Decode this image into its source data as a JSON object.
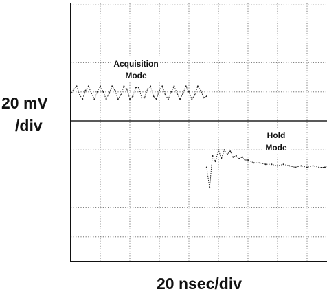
{
  "chart_data": {
    "type": "line",
    "title": "",
    "ylabel_lines": [
      "20 mV",
      "/div"
    ],
    "xlabel": "20 nsec/div",
    "x_unit": "div",
    "y_unit": "div",
    "xlim": [
      0,
      9
    ],
    "ylim": [
      -5,
      4.4
    ],
    "grid": true,
    "grid_divisions": {
      "x": 9,
      "y": 9
    },
    "annotations": [
      {
        "lines": [
          "Acquisition",
          "Mode"
        ]
      },
      {
        "lines": [
          "Hold",
          "Mode"
        ]
      }
    ],
    "series": [
      {
        "x": [
          0.0,
          0.1,
          0.2,
          0.3,
          0.4,
          0.5,
          0.6,
          0.7,
          0.8,
          0.9,
          1.0,
          1.1,
          1.2,
          1.3,
          1.4,
          1.5,
          1.6,
          1.7,
          1.8,
          1.9,
          2.0,
          2.1,
          2.2,
          2.3,
          2.4,
          2.5,
          2.6,
          2.7,
          2.8,
          2.9,
          3.0,
          3.1,
          3.2,
          3.3,
          3.4,
          3.5,
          3.6,
          3.7,
          3.8,
          3.9,
          4.0,
          4.1,
          4.2,
          4.3,
          4.4,
          4.5,
          4.6
        ],
        "y": [
          0.9,
          1.1,
          1.2,
          0.9,
          0.75,
          1.05,
          1.2,
          0.95,
          0.75,
          1.0,
          1.2,
          1.0,
          0.75,
          0.95,
          1.2,
          1.05,
          0.75,
          0.9,
          1.2,
          1.1,
          0.75,
          0.85,
          1.15,
          1.15,
          0.8,
          0.8,
          1.1,
          1.2,
          0.85,
          0.75,
          1.05,
          1.2,
          0.9,
          0.75,
          1.0,
          1.2,
          0.95,
          0.75,
          0.95,
          1.2,
          1.0,
          0.75,
          0.9,
          1.2,
          1.05,
          0.8,
          0.85
        ]
      },
      {
        "x": [
          4.6,
          4.7,
          4.8,
          4.9,
          5.0,
          5.1,
          5.2,
          5.3,
          5.4,
          5.5,
          5.6,
          5.7,
          5.8,
          5.9,
          6.0,
          6.2,
          6.4,
          6.6,
          6.8,
          7.0,
          7.2,
          7.4,
          7.6,
          7.8,
          8.0,
          8.2,
          8.4,
          8.6,
          8.8,
          9.0
        ],
        "y": [
          -1.6,
          -2.3,
          -1.2,
          -1.4,
          -1.0,
          -1.3,
          -1.0,
          -1.15,
          -1.05,
          -1.25,
          -1.2,
          -1.3,
          -1.25,
          -1.35,
          -1.35,
          -1.45,
          -1.45,
          -1.5,
          -1.5,
          -1.55,
          -1.5,
          -1.55,
          -1.6,
          -1.55,
          -1.6,
          -1.55,
          -1.6,
          -1.6,
          -1.55,
          -1.6
        ]
      }
    ]
  }
}
